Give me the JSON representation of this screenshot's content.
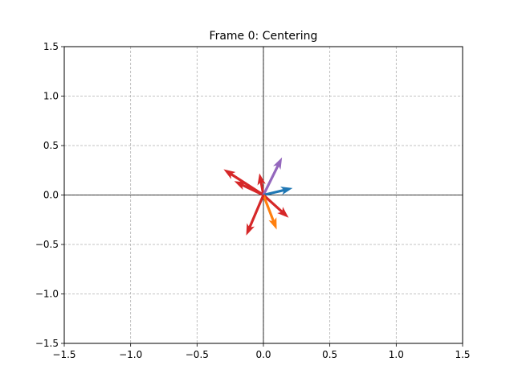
{
  "chart_data": {
    "type": "quiver",
    "title": "Frame 0: Centering",
    "xlim": [
      -1.5,
      1.5
    ],
    "ylim": [
      -1.5,
      1.5
    ],
    "xticks": [
      -1.5,
      -1.0,
      -0.5,
      0.0,
      0.5,
      1.0,
      1.5
    ],
    "yticks": [
      -1.5,
      -1.0,
      -0.5,
      0.0,
      0.5,
      1.0,
      1.5
    ],
    "xtick_labels": [
      "−1.5",
      "−1.0",
      "−0.5",
      "0.0",
      "0.5",
      "1.0",
      "1.5"
    ],
    "ytick_labels": [
      "−1.5",
      "−1.0",
      "−0.5",
      "0.0",
      "0.5",
      "1.0",
      "1.5"
    ],
    "grid": true,
    "axes_lines_at_zero": true,
    "vectors": [
      {
        "origin": [
          0,
          0
        ],
        "dx": -0.3,
        "dy": 0.26,
        "color": "#d62728"
      },
      {
        "origin": [
          0,
          0
        ],
        "dx": -0.22,
        "dy": 0.14,
        "color": "#d62728"
      },
      {
        "origin": [
          0,
          0
        ],
        "dx": -0.03,
        "dy": 0.22,
        "color": "#d62728"
      },
      {
        "origin": [
          0,
          0
        ],
        "dx": 0.14,
        "dy": 0.38,
        "color": "#9467bd"
      },
      {
        "origin": [
          0,
          0
        ],
        "dx": 0.22,
        "dy": 0.07,
        "color": "#1f77b4"
      },
      {
        "origin": [
          0,
          0
        ],
        "dx": 0.19,
        "dy": -0.23,
        "color": "#d62728"
      },
      {
        "origin": [
          0,
          0
        ],
        "dx": 0.1,
        "dy": -0.35,
        "color": "#ff7f0e"
      },
      {
        "origin": [
          0,
          0
        ],
        "dx": -0.13,
        "dy": -0.41,
        "color": "#d62728"
      }
    ]
  }
}
